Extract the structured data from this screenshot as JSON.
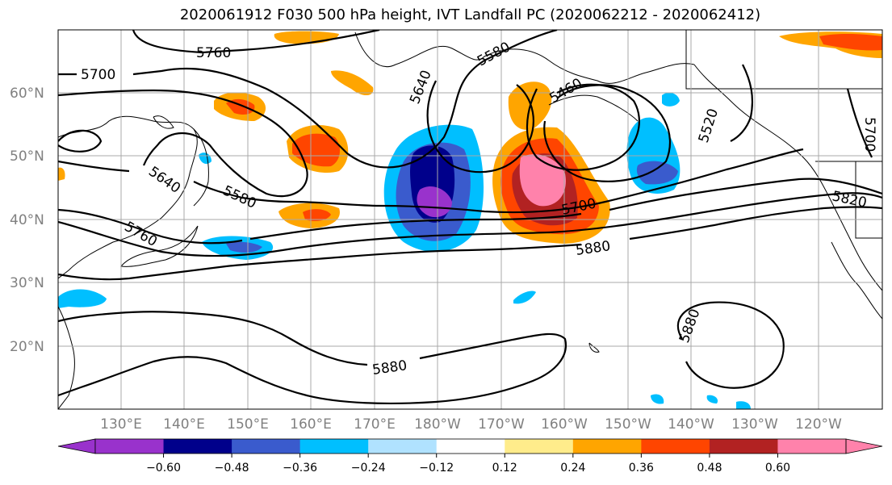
{
  "title": "2020061912 F030 500 hPa height, IVT Landfall PC (2020062212 - 2020062412)",
  "lat_labels": [
    "60°N",
    "50°N",
    "40°N",
    "30°N",
    "20°N"
  ],
  "lon_labels": [
    "130°E",
    "140°E",
    "150°E",
    "160°E",
    "170°E",
    "180°W",
    "170°W",
    "160°W",
    "150°W",
    "140°W",
    "130°W",
    "120°W"
  ],
  "contour_labels": [
    "5760",
    "5700",
    "5640",
    "5580",
    "5640",
    "5580",
    "5460",
    "5520",
    "5700",
    "5820",
    "5760",
    "5700",
    "5880",
    "5880",
    "5880"
  ],
  "colorbar": {
    "colors": [
      "#9932cc",
      "#00008b",
      "#3a5bcd",
      "#00bfff",
      "#b0e2ff",
      "#ffffff",
      "#ffec8b",
      "#ffa500",
      "#ff4500",
      "#b22222",
      "#ff82ab"
    ],
    "ticks": [
      "−0.60",
      "−0.48",
      "−0.36",
      "−0.24",
      "−0.12",
      "0.12",
      "0.24",
      "0.36",
      "0.48",
      "0.60"
    ]
  }
}
